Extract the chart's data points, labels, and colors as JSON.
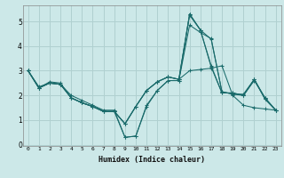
{
  "xlabel": "Humidex (Indice chaleur)",
  "ylabel": "",
  "xlim": [
    -0.5,
    23.5
  ],
  "ylim": [
    -0.05,
    5.65
  ],
  "yticks": [
    0,
    1,
    2,
    3,
    4,
    5
  ],
  "xticks": [
    0,
    1,
    2,
    3,
    4,
    5,
    6,
    7,
    8,
    9,
    10,
    11,
    12,
    13,
    14,
    15,
    16,
    17,
    18,
    19,
    20,
    21,
    22,
    23
  ],
  "bg_color": "#cce8e8",
  "grid_color": "#b0d0d0",
  "line_color": "#1a6b6b",
  "lines": [
    {
      "x": [
        0,
        1,
        2,
        3,
        4,
        5,
        6,
        7,
        8,
        9,
        10,
        11,
        12,
        13,
        14,
        15,
        16,
        17,
        18,
        19,
        20,
        21,
        22,
        23
      ],
      "y": [
        3.0,
        2.3,
        2.55,
        2.5,
        1.9,
        1.7,
        1.55,
        1.35,
        1.35,
        0.85,
        1.55,
        2.2,
        2.55,
        2.75,
        2.65,
        5.3,
        4.65,
        3.15,
        2.1,
        2.1,
        2.0,
        2.65,
        1.85,
        1.4
      ]
    },
    {
      "x": [
        0,
        1,
        2,
        3,
        4,
        5,
        6,
        7,
        8,
        9,
        10,
        11,
        12,
        13,
        14,
        15,
        16,
        17,
        18,
        19,
        20,
        21,
        22,
        23
      ],
      "y": [
        3.0,
        2.35,
        2.5,
        2.45,
        2.0,
        1.8,
        1.6,
        1.4,
        1.4,
        0.3,
        0.35,
        1.6,
        2.2,
        2.6,
        2.6,
        4.85,
        4.55,
        4.3,
        2.15,
        2.05,
        2.0,
        2.6,
        1.9,
        1.4
      ]
    },
    {
      "x": [
        0,
        1,
        2,
        3,
        4,
        5,
        6,
        7,
        8,
        9,
        10,
        11,
        12,
        13,
        14,
        15,
        16,
        17,
        18,
        19,
        20,
        21,
        22,
        23
      ],
      "y": [
        3.0,
        2.3,
        2.5,
        2.45,
        1.9,
        1.7,
        1.55,
        1.35,
        1.35,
        0.3,
        0.35,
        1.55,
        2.2,
        2.6,
        2.6,
        5.25,
        4.65,
        3.2,
        2.1,
        2.1,
        2.0,
        2.65,
        1.9,
        1.4
      ]
    },
    {
      "x": [
        0,
        1,
        2,
        3,
        4,
        5,
        6,
        7,
        8,
        9,
        10,
        11,
        12,
        13,
        14,
        15,
        16,
        17,
        18,
        19,
        20,
        21,
        22,
        23
      ],
      "y": [
        3.0,
        2.3,
        2.5,
        2.45,
        1.9,
        1.7,
        1.55,
        1.35,
        1.35,
        0.85,
        1.55,
        2.2,
        2.55,
        2.75,
        2.65,
        5.3,
        4.65,
        4.28,
        2.15,
        2.05,
        2.05,
        2.65,
        1.85,
        1.4
      ]
    },
    {
      "x": [
        0,
        1,
        2,
        3,
        4,
        5,
        6,
        7,
        8,
        9,
        10,
        11,
        12,
        13,
        14,
        15,
        16,
        17,
        18,
        19,
        20,
        21,
        22,
        23
      ],
      "y": [
        3.0,
        2.3,
        2.5,
        2.45,
        1.9,
        1.7,
        1.55,
        1.35,
        1.35,
        0.85,
        1.55,
        2.2,
        2.55,
        2.75,
        2.65,
        3.0,
        3.05,
        3.1,
        3.2,
        2.0,
        1.6,
        1.5,
        1.45,
        1.4
      ]
    }
  ]
}
